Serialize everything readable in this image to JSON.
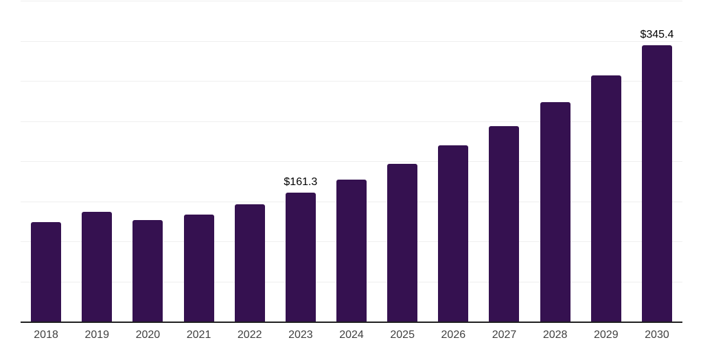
{
  "chart_data": {
    "type": "bar",
    "title": "",
    "xlabel": "",
    "ylabel": "",
    "categories": [
      "2018",
      "2019",
      "2020",
      "2021",
      "2022",
      "2023",
      "2024",
      "2025",
      "2026",
      "2027",
      "2028",
      "2029",
      "2030"
    ],
    "values": [
      124.8,
      137.2,
      127.4,
      134.2,
      147.0,
      161.3,
      178.2,
      197.4,
      220.1,
      244.4,
      274.0,
      307.3,
      345.4
    ],
    "data_labels": {
      "2023": "$161.3",
      "2030": "$345.4"
    },
    "ylim": [
      0,
      400
    ],
    "grid_interval": 50,
    "grid": true,
    "legend": false,
    "colors": {
      "bar": "#351150",
      "grid": "#efefef",
      "axis": "#1f1f1f",
      "tick_label": "#3f3f3f",
      "data_label": "#000000",
      "background": "#ffffff"
    }
  }
}
